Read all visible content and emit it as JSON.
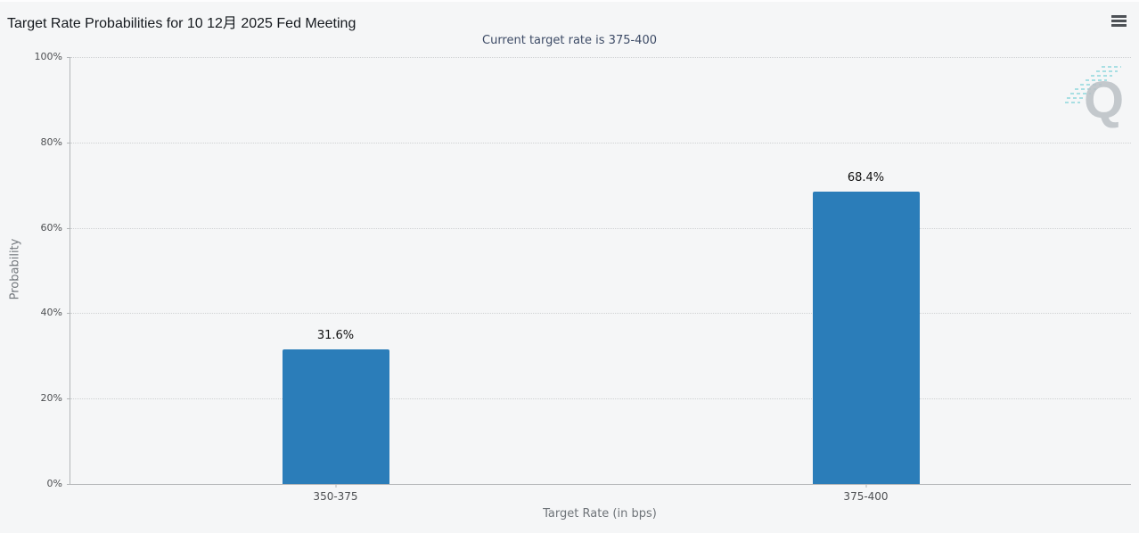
{
  "chart_data": {
    "type": "bar",
    "title": "Target Rate Probabilities for 10 12月 2025 Fed Meeting",
    "subtitle": "Current target rate is 375-400",
    "categories": [
      "350-375",
      "375-400"
    ],
    "values": [
      31.6,
      68.4
    ],
    "value_labels": [
      "31.6%",
      "68.4%"
    ],
    "xlabel": "Target Rate (in bps)",
    "ylabel": "Probability",
    "ylim": [
      0,
      100
    ],
    "yticks": [
      {
        "value": 0,
        "label": "0%"
      },
      {
        "value": 20,
        "label": "20%"
      },
      {
        "value": 40,
        "label": "40%"
      },
      {
        "value": 60,
        "label": "60%"
      },
      {
        "value": 80,
        "label": "80%"
      },
      {
        "value": 100,
        "label": "100%"
      }
    ],
    "grid": "horizontal-dotted",
    "legend": "none",
    "bar_color": "#2b7db9"
  },
  "watermark": {
    "letter": "Q"
  },
  "colors": {
    "background": "#f5f6f7",
    "bar": "#2b7db9",
    "subtitle_text": "#3d4b66",
    "axis_line": "#b3b6b8",
    "gridline": "#cfd1d3",
    "watermark_teal": "#5ac7ce",
    "watermark_gray": "#b4bac0"
  }
}
